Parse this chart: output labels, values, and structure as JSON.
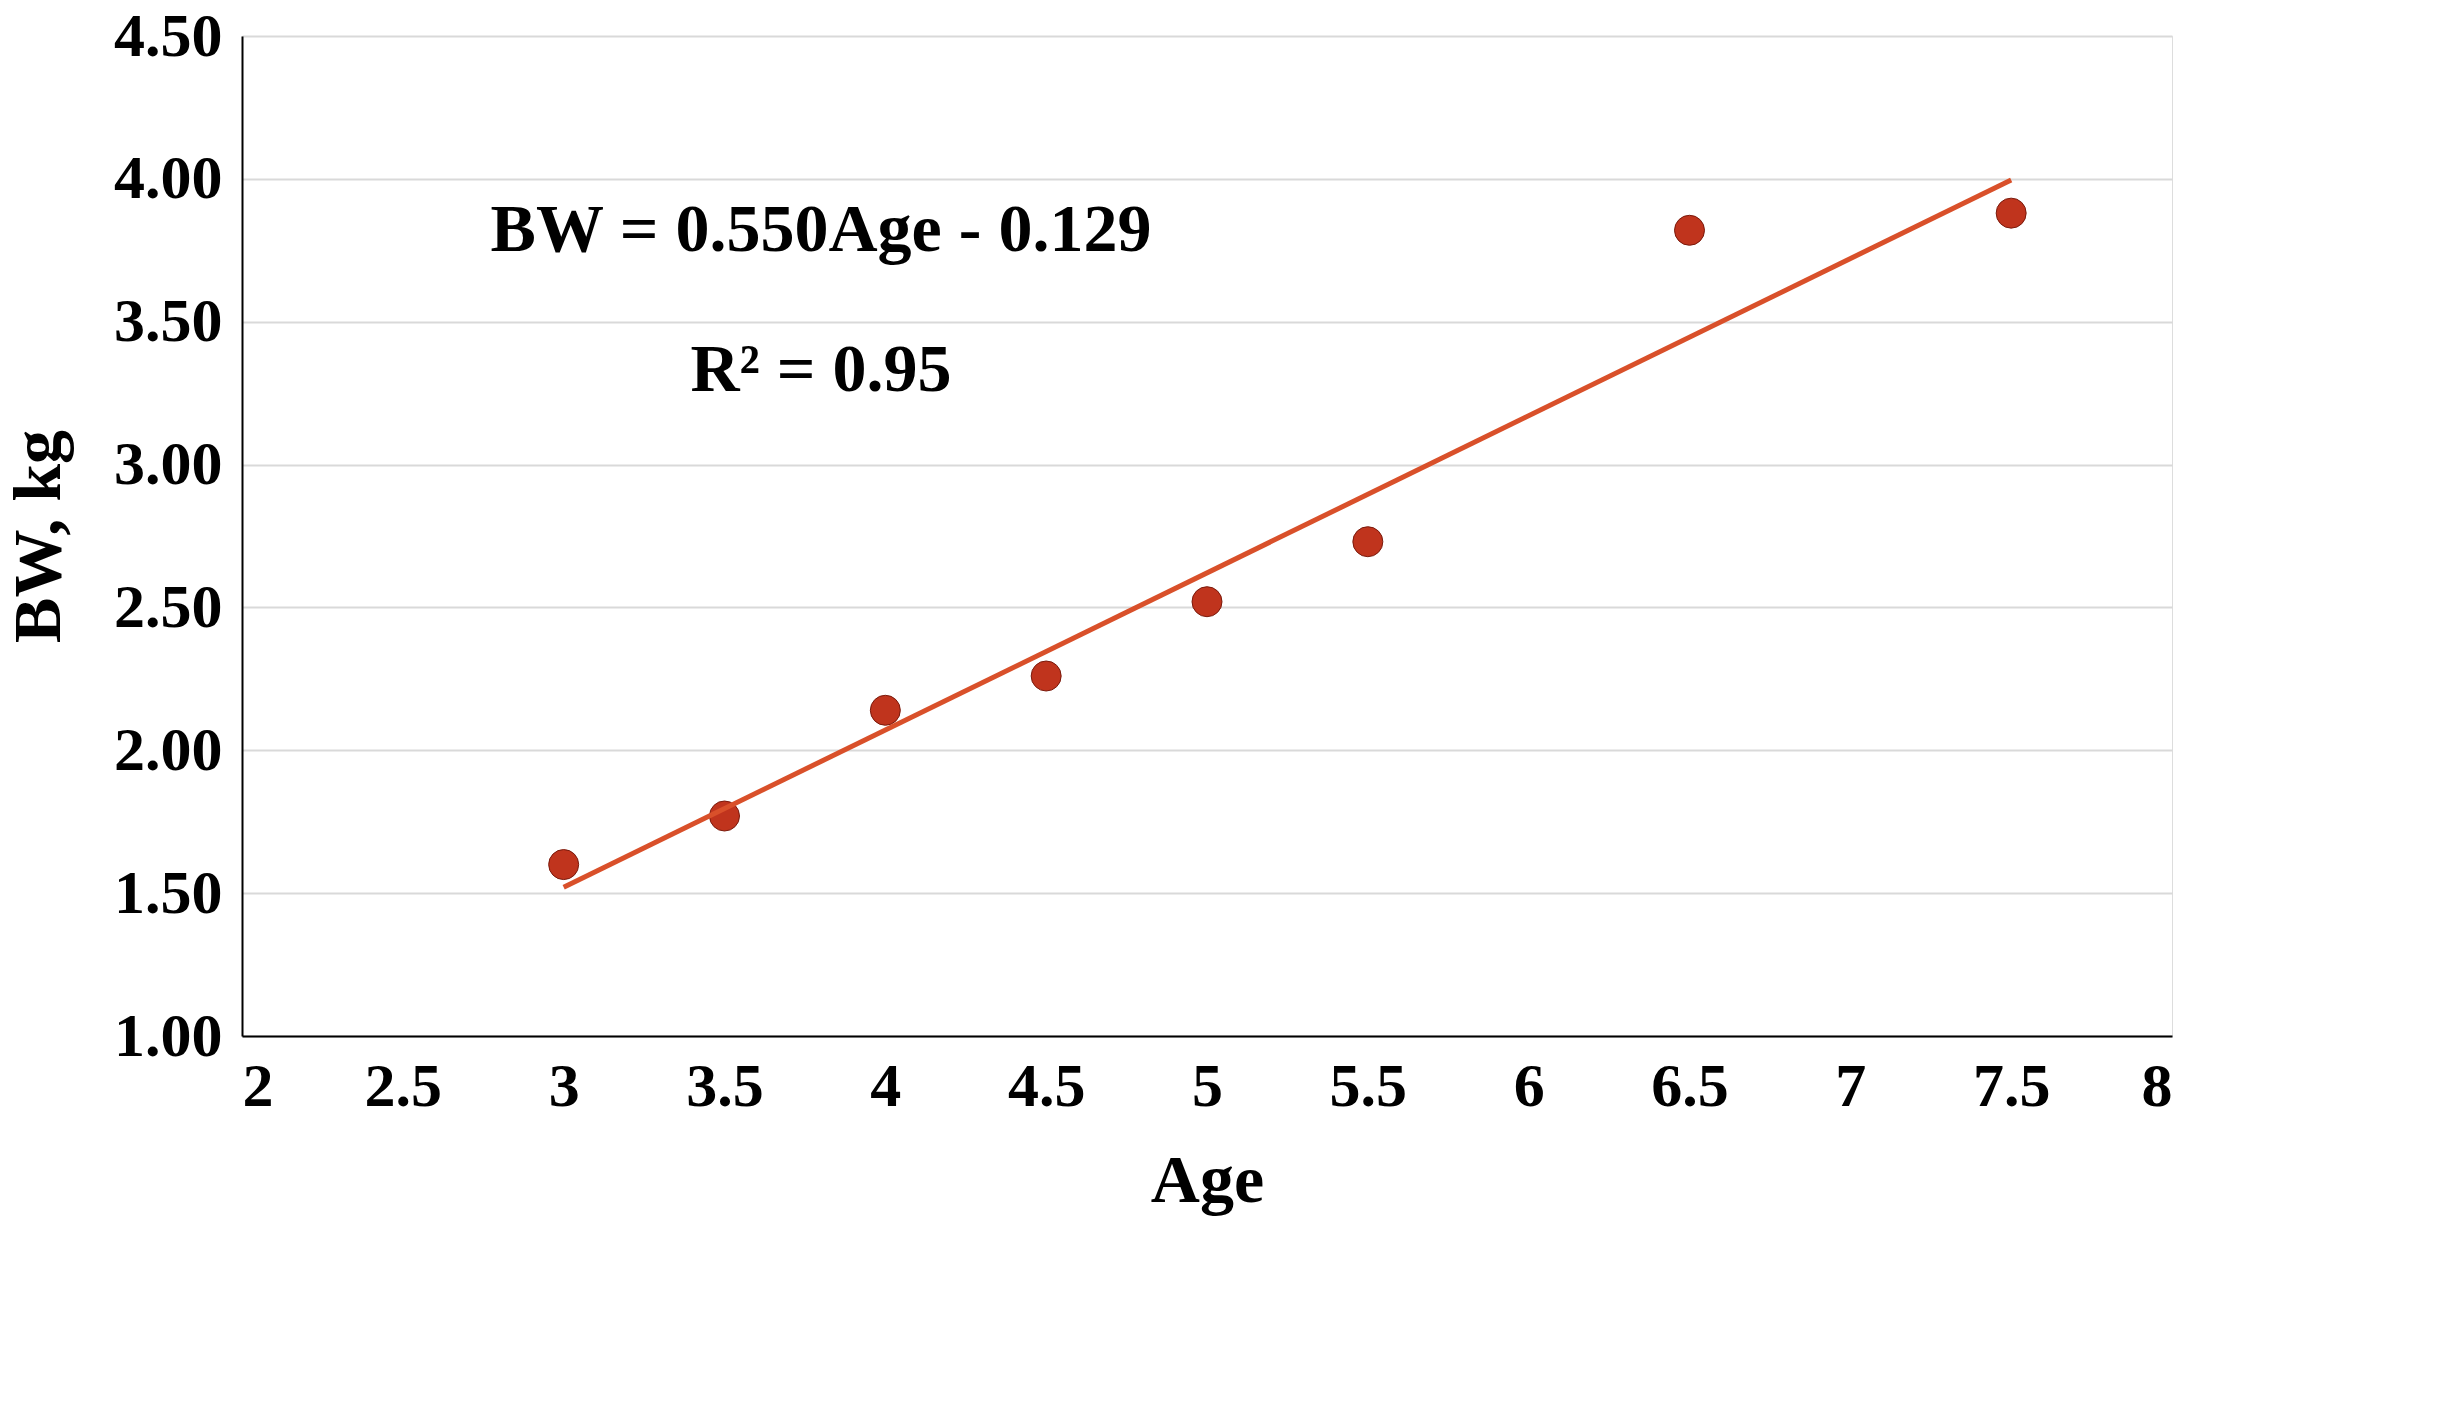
{
  "chart_data": {
    "type": "scatter",
    "xlabel": "Age",
    "ylabel": "BW, kg",
    "annotations": [
      "BW = 0.550Age - 0.129",
      "R² = 0.95"
    ],
    "series": [
      {
        "color": "#c0341d",
        "x": [
          3,
          3.5,
          4,
          4.5,
          5,
          5.5,
          6.5,
          7.5
        ],
        "values": [
          1.6,
          1.77,
          2.14,
          2.26,
          2.52,
          2.73,
          3.82,
          3.88
        ]
      },
      {
        "type": "line",
        "marker": "none",
        "color": "#d9502a",
        "x": [
          3,
          7.5
        ],
        "values": [
          1.521,
          3.996
        ]
      }
    ],
    "xlim": [
      2,
      8
    ],
    "xticks": [
      2,
      2.5,
      3,
      3.5,
      4,
      4.5,
      5,
      5.5,
      6,
      6.5,
      7,
      7.5,
      8
    ],
    "ylim": [
      1,
      4.5
    ],
    "yticks": [
      {
        "value": 1,
        "label": "1.00"
      },
      {
        "value": 1.5,
        "label": "1.50"
      },
      {
        "value": 2,
        "label": "2.00"
      },
      {
        "value": 2.5,
        "label": "2.50"
      },
      {
        "value": 3,
        "label": "3.00"
      },
      {
        "value": 3.5,
        "label": "3.50"
      },
      {
        "value": 4,
        "label": "4.00"
      },
      {
        "value": 4.5,
        "label": "4.50"
      }
    ],
    "grid": "y",
    "marker": "circle"
  }
}
